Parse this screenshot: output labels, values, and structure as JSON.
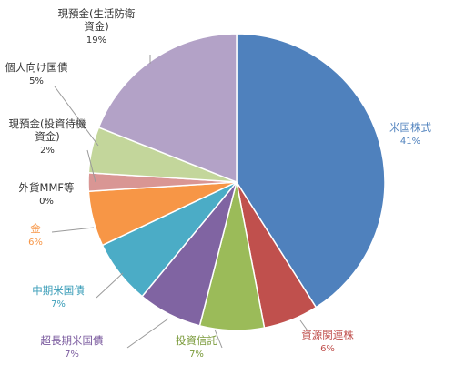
{
  "chart_data": {
    "type": "pie",
    "title": "",
    "slices": [
      {
        "label": "米国株式",
        "label_lines": [
          "米国株式"
        ],
        "pct_label": "41%",
        "value": 41,
        "color": "#4F81BD",
        "label_color": "#4F81BD"
      },
      {
        "label": "資源関連株",
        "label_lines": [
          "資源関連株"
        ],
        "pct_label": "6%",
        "value": 6,
        "color": "#C0504D",
        "label_color": "#C0504D"
      },
      {
        "label": "投資信託",
        "label_lines": [
          "投資信託"
        ],
        "pct_label": "7%",
        "value": 7,
        "color": "#9BBB59",
        "label_color": "#7A9A3A"
      },
      {
        "label": "超長期米国債",
        "label_lines": [
          "超長期米国債"
        ],
        "pct_label": "7%",
        "value": 7,
        "color": "#8064A2",
        "label_color": "#7A5A9E"
      },
      {
        "label": "中期米国債",
        "label_lines": [
          "中期米国債"
        ],
        "pct_label": "7%",
        "value": 7,
        "color": "#4BACC6",
        "label_color": "#3A9DB8"
      },
      {
        "label": "金",
        "label_lines": [
          "金"
        ],
        "pct_label": "6%",
        "value": 6,
        "color": "#F79646",
        "label_color": "#F79646"
      },
      {
        "label": "外貨MMF等",
        "label_lines": [
          "外貨MMF等"
        ],
        "pct_label": "0%",
        "value": 0,
        "color": "#2C4D75",
        "label_color": "#333333"
      },
      {
        "label": "現預金(投資待機資金)",
        "label_lines": [
          "現預金(投資待機",
          "資金)"
        ],
        "pct_label": "2%",
        "value": 2,
        "color": "#D99694",
        "label_color": "#333333"
      },
      {
        "label": "個人向け国債",
        "label_lines": [
          "個人向け国債"
        ],
        "pct_label": "5%",
        "value": 5,
        "color": "#C3D69B",
        "label_color": "#333333"
      },
      {
        "label": "現預金(生活防衛資金)",
        "label_lines": [
          "現預金(生活防衛",
          "資金)"
        ],
        "pct_label": "19%",
        "value": 19,
        "color": "#B3A2C7",
        "label_color": "#333333"
      }
    ],
    "legend": "none",
    "start": "top",
    "direction": "clockwise"
  }
}
